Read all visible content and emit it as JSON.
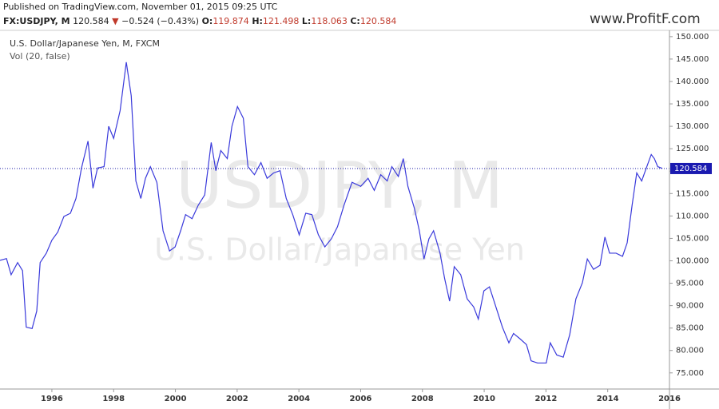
{
  "header": {
    "published": "Published on TradingView.com, November 01, 2015 09:25 UTC",
    "symbol": "FX:USDJPY, M",
    "last": "120.584",
    "arrow": "▼",
    "change": "−0.524 (−0.43%)",
    "ohlc": [
      {
        "label": "O:",
        "value": "119.874"
      },
      {
        "label": "H:",
        "value": "121.498"
      },
      {
        "label": "L:",
        "value": "118.063"
      },
      {
        "label": "C:",
        "value": "120.584"
      }
    ],
    "logo": "www.ProfitF.com"
  },
  "chart_data": {
    "type": "line",
    "title": "U.S. Dollar/Japanese Yen, M, FXCM",
    "subtitle": "Vol (20, false)",
    "watermark": "USDJPY, M",
    "watermark_subtitle": "U.S. Dollar/Japanese Yen",
    "x": [
      1994.32,
      1994.53,
      1994.68,
      1994.89,
      1995.05,
      1995.17,
      1995.36,
      1995.51,
      1995.62,
      1995.82,
      1996.0,
      1996.19,
      1996.39,
      1996.6,
      1996.78,
      1996.96,
      1997.17,
      1997.33,
      1997.48,
      1997.69,
      1997.84,
      1998.0,
      1998.21,
      1998.41,
      1998.57,
      1998.72,
      1998.88,
      1999.03,
      1999.19,
      1999.4,
      1999.6,
      1999.81,
      1999.99,
      2000.17,
      2000.33,
      2000.54,
      2000.74,
      2000.95,
      2001.16,
      2001.31,
      2001.47,
      2001.68,
      2001.83,
      2002.01,
      2002.2,
      2002.35,
      2002.56,
      2002.77,
      2002.97,
      2003.18,
      2003.39,
      2003.59,
      2003.8,
      2004.01,
      2004.22,
      2004.42,
      2004.63,
      2004.84,
      2005.05,
      2005.25,
      2005.46,
      2005.72,
      2006.0,
      2006.24,
      2006.44,
      2006.65,
      2006.86,
      2007.01,
      2007.22,
      2007.38,
      2007.53,
      2007.74,
      2007.9,
      2008.05,
      2008.21,
      2008.36,
      2008.57,
      2008.72,
      2008.88,
      2009.03,
      2009.24,
      2009.45,
      2009.66,
      2009.81,
      2009.99,
      2010.17,
      2010.38,
      2010.59,
      2010.8,
      2010.95,
      2011.16,
      2011.37,
      2011.52,
      2011.73,
      2012.01,
      2012.14,
      2012.35,
      2012.56,
      2012.77,
      2012.97,
      2013.18,
      2013.34,
      2013.54,
      2013.75,
      2013.91,
      2014.06,
      2014.27,
      2014.48,
      2014.63,
      2014.79,
      2014.94,
      2015.1,
      2015.25,
      2015.41,
      2015.51,
      2015.62,
      2015.77
    ],
    "series": [
      {
        "name": "USDJPY",
        "color": "#3a3adb",
        "values": [
          100.1,
          100.5,
          96.9,
          99.6,
          97.8,
          85.2,
          84.9,
          88.8,
          99.6,
          101.7,
          104.6,
          106.4,
          109.9,
          110.6,
          113.9,
          120.7,
          126.7,
          116.2,
          120.7,
          121.0,
          130.0,
          127.3,
          133.5,
          144.3,
          136.8,
          117.8,
          113.9,
          118.4,
          121.0,
          117.5,
          106.7,
          102.2,
          103.1,
          106.7,
          110.3,
          109.4,
          112.4,
          114.7,
          126.4,
          120.1,
          124.6,
          122.8,
          130.0,
          134.4,
          131.8,
          121.0,
          119.2,
          121.9,
          118.4,
          119.6,
          120.1,
          113.9,
          110.3,
          105.8,
          110.6,
          110.3,
          105.8,
          103.1,
          104.9,
          107.6,
          112.4,
          117.5,
          116.6,
          118.4,
          115.7,
          119.2,
          117.8,
          121.0,
          118.8,
          122.8,
          116.6,
          111.7,
          106.7,
          100.4,
          104.9,
          106.7,
          101.7,
          96.0,
          91.0,
          98.7,
          96.9,
          91.5,
          89.7,
          87.0,
          93.3,
          94.2,
          89.7,
          85.2,
          81.7,
          83.8,
          82.6,
          81.3,
          77.7,
          77.2,
          77.2,
          81.7,
          79.0,
          78.5,
          83.5,
          91.5,
          95.1,
          100.4,
          98.1,
          99.0,
          105.3,
          101.7,
          101.7,
          101.0,
          104.0,
          112.4,
          119.6,
          117.8,
          120.7,
          123.7,
          122.8,
          121.0,
          120.6
        ]
      }
    ],
    "last_price": 120.584,
    "xlim": [
      1994.32,
      2016.0
    ],
    "ylim": [
      71.4,
      151.4
    ],
    "xticks": [
      1996,
      1998,
      2000,
      2002,
      2004,
      2006,
      2008,
      2010,
      2012,
      2014,
      2016
    ],
    "yticks": [
      {
        "value": 75,
        "label": "75.000"
      },
      {
        "value": 80,
        "label": "80.000"
      },
      {
        "value": 85,
        "label": "85.000"
      },
      {
        "value": 90,
        "label": "90.000"
      },
      {
        "value": 95,
        "label": "95.000"
      },
      {
        "value": 100,
        "label": "100.000"
      },
      {
        "value": 105,
        "label": "105.000"
      },
      {
        "value": 110,
        "label": "110.000"
      },
      {
        "value": 115,
        "label": "115.000"
      },
      {
        "value": 120,
        "label": "120.000"
      },
      {
        "value": 125,
        "label": "125.000"
      },
      {
        "value": 130,
        "label": "130.000"
      },
      {
        "value": 135,
        "label": "135.000"
      },
      {
        "value": 140,
        "label": "140.000"
      },
      {
        "value": 145,
        "label": "145.000"
      },
      {
        "value": 150,
        "label": "150.000"
      }
    ]
  }
}
